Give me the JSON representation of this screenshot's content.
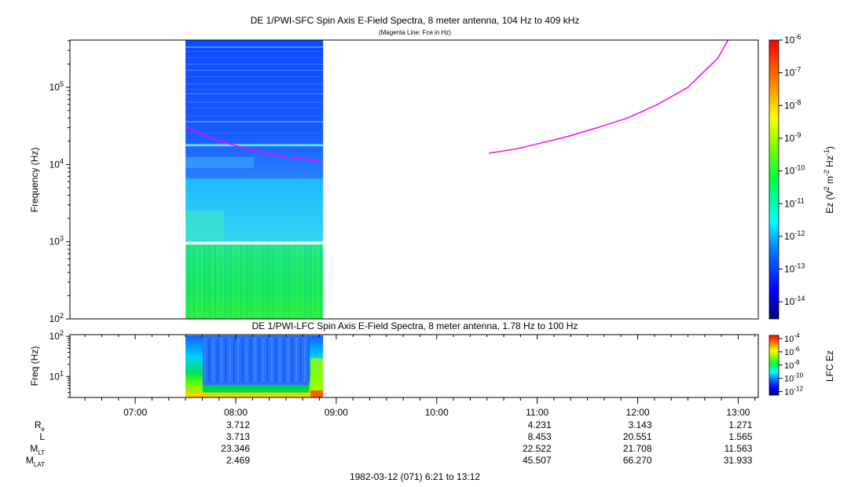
{
  "chart_data": [
    {
      "type": "heatmap",
      "title": "DE 1/PWI-SFC  Spin Axis E-Field Spectra, 8 meter antenna, 104 Hz to 409 kHz",
      "subtitle": "(Magenta Line: Fce in Hz)",
      "ylabel": "Frequency (Hz)",
      "yscale": "log",
      "ylim": [
        100,
        409000
      ],
      "y_ticks": [
        {
          "value": 100,
          "base": "10",
          "exp": "2"
        },
        {
          "value": 1000,
          "base": "10",
          "exp": "3"
        },
        {
          "value": 10000,
          "base": "10",
          "exp": "4"
        },
        {
          "value": 100000,
          "base": "10",
          "exp": "5"
        }
      ],
      "xlim_hours": [
        6.35,
        13.2
      ],
      "data_coverage_hours": [
        7.5,
        8.87
      ],
      "colorbar": {
        "label_main": "Ez (V",
        "label_sup1": "2",
        "label_mid": " m",
        "label_sup2": "-2",
        "label_mid2": " Hz",
        "label_sup3": "-1",
        "label_end": ")",
        "scale": "log",
        "range": [
          3e-15,
          1e-06
        ],
        "ticks": [
          {
            "value": 1e-06,
            "base": "10",
            "exp": "-6"
          },
          {
            "value": 1e-07,
            "base": "10",
            "exp": "-7"
          },
          {
            "value": 1e-08,
            "base": "10",
            "exp": "-8"
          },
          {
            "value": 1e-09,
            "base": "10",
            "exp": "-9"
          },
          {
            "value": 1e-10,
            "base": "10",
            "exp": "-10"
          },
          {
            "value": 1e-11,
            "base": "10",
            "exp": "-11"
          },
          {
            "value": 1e-12,
            "base": "10",
            "exp": "-12"
          },
          {
            "value": 1e-13,
            "base": "10",
            "exp": "-13"
          },
          {
            "value": 1e-14,
            "base": "10",
            "exp": "-14"
          }
        ]
      },
      "fce_line": {
        "color": "#ff00ff",
        "segments": [
          {
            "x": [
              7.5,
              7.75,
              8.0,
              8.25,
              8.5,
              8.85
            ],
            "y": [
              31000,
              22000,
              17500,
              14500,
              12500,
              11000
            ]
          },
          {
            "x": [
              10.52,
              10.8,
              11.0,
              11.3,
              11.6,
              11.9,
              12.2,
              12.5,
              12.8,
              12.9
            ],
            "y": [
              14000,
              16000,
              18500,
              23000,
              30000,
              40000,
              60000,
              100000,
              240000,
              409000
            ]
          }
        ]
      }
    },
    {
      "type": "heatmap",
      "title": "DE 1/PWI-LFC  Spin Axis E-Field Spectra, 8 meter antenna, 1.78 Hz to 100 Hz",
      "ylabel": "Freq (Hz)",
      "yscale": "log",
      "ylim": [
        3,
        110
      ],
      "y_ticks": [
        {
          "value": 10,
          "base": "10",
          "exp": "1"
        },
        {
          "value": 100,
          "base": "10",
          "exp": "2"
        }
      ],
      "xlim_hours": [
        6.35,
        13.2
      ],
      "data_coverage_hours": [
        7.5,
        8.87
      ],
      "colorbar": {
        "label": "LFC Ez",
        "scale": "log",
        "range": [
          3e-13,
          0.0001
        ],
        "ticks": [
          {
            "value": 0.0001,
            "base": "10",
            "exp": "-4"
          },
          {
            "value": 1e-06,
            "base": "10",
            "exp": "-6"
          },
          {
            "value": 1e-08,
            "base": "10",
            "exp": "-8"
          },
          {
            "value": 1e-10,
            "base": "10",
            "exp": "-10"
          },
          {
            "value": 1e-12,
            "base": "10",
            "exp": "-12"
          }
        ]
      }
    }
  ],
  "time_axis": {
    "ticks": [
      {
        "value": 7.0,
        "label": "07:00"
      },
      {
        "value": 8.0,
        "label": "08:00"
      },
      {
        "value": 9.0,
        "label": "09:00"
      },
      {
        "value": 10.0,
        "label": "10:00"
      },
      {
        "value": 11.0,
        "label": "11:00"
      },
      {
        "value": 12.0,
        "label": "12:00"
      },
      {
        "value": 13.0,
        "label": "13:00"
      }
    ]
  },
  "ephemeris": {
    "rows": [
      {
        "base": "R",
        "sub": "e",
        "values": [
          {
            "t": 8.0,
            "v": "3.712"
          },
          {
            "t": 11.0,
            "v": "4.231"
          },
          {
            "t": 12.0,
            "v": "3.143"
          },
          {
            "t": 13.0,
            "v": "1.271"
          }
        ]
      },
      {
        "base": "L",
        "sub": "",
        "values": [
          {
            "t": 8.0,
            "v": "3.713"
          },
          {
            "t": 11.0,
            "v": "8.453"
          },
          {
            "t": 12.0,
            "v": "20.551"
          },
          {
            "t": 13.0,
            "v": "1.565"
          }
        ]
      },
      {
        "base": "M",
        "sub": "LT",
        "values": [
          {
            "t": 8.0,
            "v": "23.346"
          },
          {
            "t": 11.0,
            "v": "22.522"
          },
          {
            "t": 12.0,
            "v": "21.708"
          },
          {
            "t": 13.0,
            "v": "11.563"
          }
        ]
      },
      {
        "base": "M",
        "sub": "LAT",
        "values": [
          {
            "t": 8.0,
            "v": "2.469"
          },
          {
            "t": 11.0,
            "v": "45.507"
          },
          {
            "t": 12.0,
            "v": "66.270"
          },
          {
            "t": 13.0,
            "v": "31.933"
          }
        ]
      }
    ]
  },
  "footer": "1982-03-12 (071) 6:21 to 13:12"
}
